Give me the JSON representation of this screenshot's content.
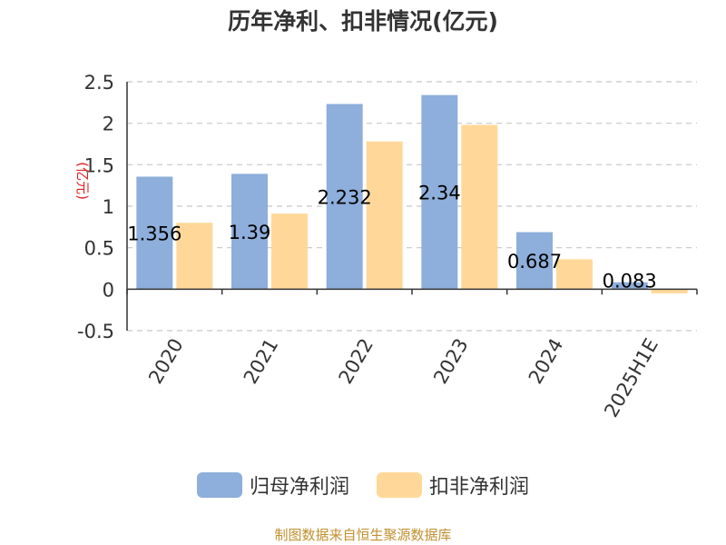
{
  "chart_data": {
    "type": "bar",
    "title": "历年净利、扣非情况(亿元)",
    "ylabel": "(亿元)",
    "categories": [
      "2020",
      "2021",
      "2022",
      "2023",
      "2024",
      "2025H1E"
    ],
    "series": [
      {
        "name": "归母净利润",
        "values": [
          1.356,
          1.39,
          2.232,
          2.34,
          0.687,
          0.083
        ],
        "labels": [
          "1.356",
          "1.39",
          "2.232",
          "2.34",
          "0.687",
          "0.083"
        ],
        "color": "#8eaedb"
      },
      {
        "name": "扣非净利润",
        "values": [
          0.8,
          0.91,
          1.78,
          1.98,
          0.36,
          -0.05
        ],
        "color": "#ffd899"
      }
    ],
    "yticks": [
      "2.5",
      "2",
      "1.5",
      "1",
      "0.5",
      "0",
      "-0.5"
    ],
    "ylim": [
      -0.5,
      2.5
    ],
    "grid": true,
    "legend_position": "bottom"
  },
  "footer": {
    "source": "制图数据来自恒生聚源数据库"
  }
}
